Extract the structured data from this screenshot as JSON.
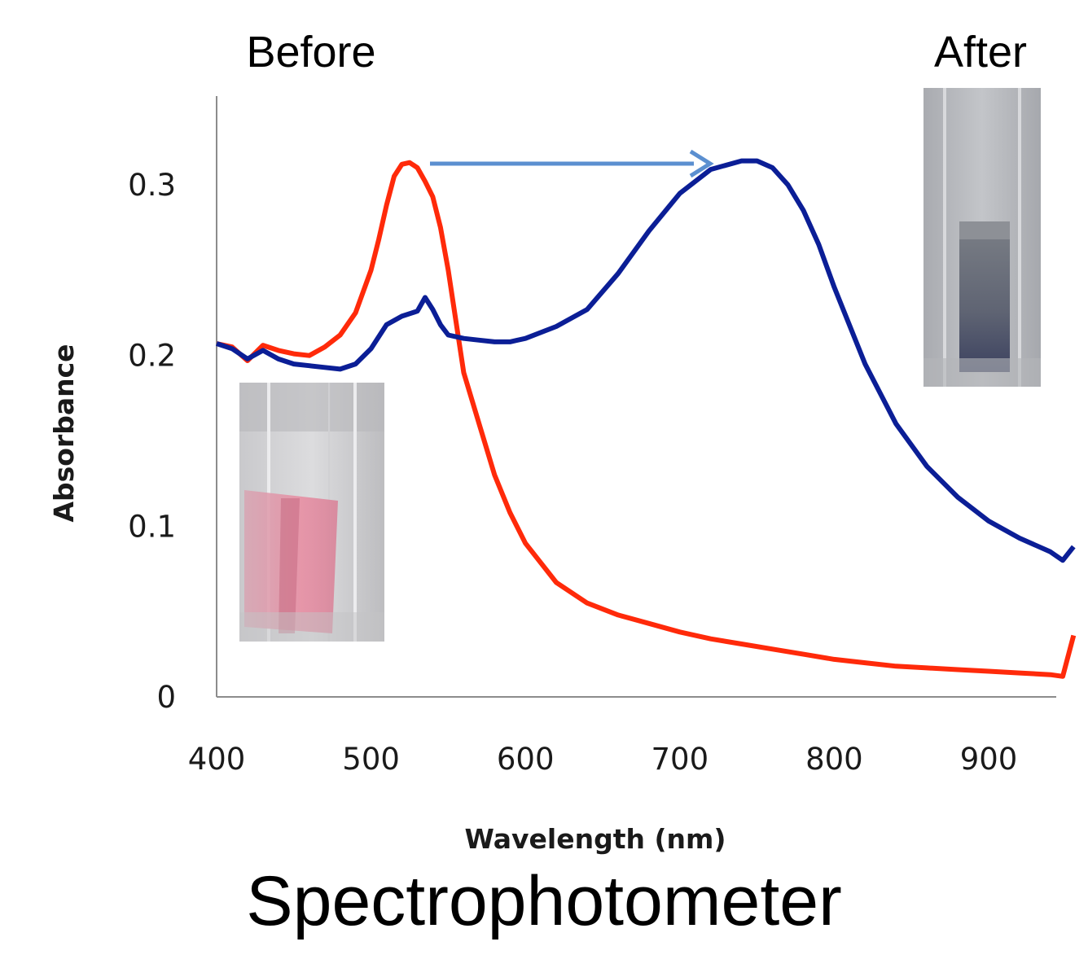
{
  "caption": "Spectrophotometer",
  "annotations": {
    "before": "Before",
    "after": "After"
  },
  "colors": {
    "before_curve": "#ff2a0a",
    "after_curve": "#0b1e96",
    "arrow": "#5b8fd0",
    "axis": "#8c8c8c"
  },
  "insets": [
    {
      "name": "before-cuvette-photo",
      "description_color": "#e8a0b0"
    },
    {
      "name": "after-cuvette-photo",
      "description_color": "#6a6e80"
    }
  ],
  "chart_data": {
    "type": "line",
    "xlabel": "Wavelength (nm)",
    "ylabel": "Absorbance",
    "xlim": [
      400,
      955
    ],
    "ylim": [
      0,
      0.35
    ],
    "xticks": [
      400,
      500,
      600,
      700,
      800,
      900
    ],
    "yticks": [
      0,
      0.1,
      0.2,
      0.3
    ],
    "ytick_labels": [
      "0",
      "0.1",
      "0.2",
      "0.3"
    ],
    "grid": false,
    "series": [
      {
        "x": [
          400,
          410,
          420,
          430,
          440,
          450,
          460,
          470,
          480,
          490,
          500,
          505,
          510,
          515,
          520,
          525,
          530,
          535,
          540,
          545,
          550,
          555,
          560,
          570,
          580,
          590,
          600,
          620,
          640,
          660,
          680,
          700,
          720,
          740,
          760,
          780,
          800,
          820,
          840,
          860,
          880,
          900,
          920,
          940,
          948,
          955
        ],
        "y": [
          0.207,
          0.205,
          0.197,
          0.206,
          0.203,
          0.201,
          0.2,
          0.205,
          0.212,
          0.225,
          0.25,
          0.268,
          0.288,
          0.305,
          0.312,
          0.313,
          0.31,
          0.302,
          0.293,
          0.275,
          0.25,
          0.22,
          0.19,
          0.16,
          0.13,
          0.108,
          0.09,
          0.067,
          0.055,
          0.048,
          0.043,
          0.038,
          0.034,
          0.031,
          0.028,
          0.025,
          0.022,
          0.02,
          0.018,
          0.017,
          0.016,
          0.015,
          0.014,
          0.013,
          0.012,
          0.036
        ]
      },
      {
        "x": [
          400,
          410,
          420,
          430,
          440,
          450,
          460,
          470,
          480,
          490,
          500,
          510,
          520,
          530,
          535,
          540,
          545,
          550,
          560,
          570,
          580,
          590,
          600,
          620,
          640,
          660,
          680,
          700,
          720,
          740,
          750,
          760,
          770,
          780,
          790,
          800,
          820,
          840,
          860,
          880,
          900,
          920,
          940,
          948,
          955
        ],
        "y": [
          0.207,
          0.204,
          0.198,
          0.203,
          0.198,
          0.195,
          0.194,
          0.193,
          0.192,
          0.195,
          0.204,
          0.218,
          0.223,
          0.226,
          0.234,
          0.227,
          0.218,
          0.212,
          0.21,
          0.209,
          0.208,
          0.208,
          0.21,
          0.217,
          0.227,
          0.248,
          0.273,
          0.295,
          0.309,
          0.314,
          0.314,
          0.31,
          0.3,
          0.285,
          0.265,
          0.24,
          0.195,
          0.16,
          0.135,
          0.117,
          0.103,
          0.093,
          0.085,
          0.08,
          0.088
        ]
      }
    ]
  }
}
